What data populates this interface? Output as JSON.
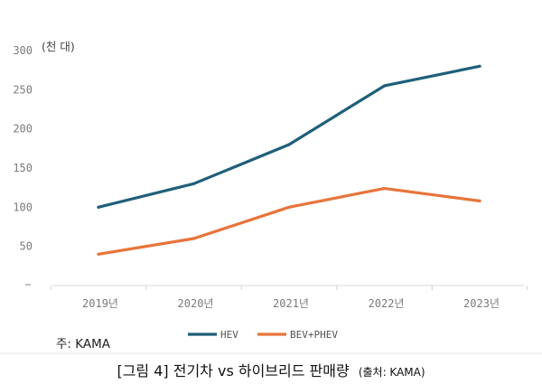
{
  "chart_data": {
    "type": "line",
    "categories": [
      "2019년",
      "2020년",
      "2021년",
      "2022년",
      "2023년"
    ],
    "series": [
      {
        "name": "HEV",
        "values": [
          100,
          130,
          180,
          255,
          280
        ],
        "color": "#1f5f7a"
      },
      {
        "name": "BEV+PHEV",
        "values": [
          40,
          60,
          100,
          124,
          108
        ],
        "color": "#e8743b"
      }
    ],
    "ylim": [
      0,
      300
    ],
    "yticks": [
      "",
      "50",
      "100",
      "150",
      "200",
      "250",
      "300"
    ],
    "unit_label": "(천 대)",
    "grid": false,
    "legend_position": "bottom"
  },
  "note": "주: KAMA",
  "caption": {
    "main": "[그림 4] 전기차 vs 하이브리드 판매량",
    "source": "(출처: KAMA)"
  }
}
